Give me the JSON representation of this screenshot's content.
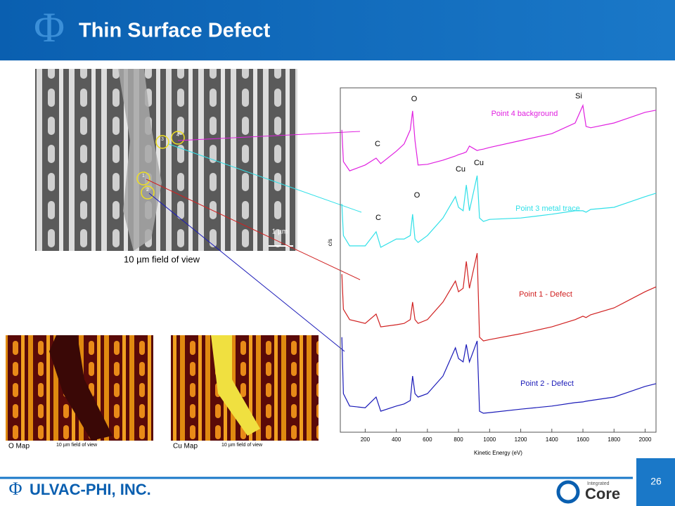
{
  "header": {
    "title": "Thin Surface Defect"
  },
  "sem_image": {
    "caption": "10 µm field of view",
    "scale_bar": "1 µm",
    "points": [
      "4",
      "3",
      "1",
      "2"
    ]
  },
  "maps": [
    {
      "label": "O Map",
      "caption": "10 µm field of view"
    },
    {
      "label": "Cu Map",
      "caption": "10 µm field of view"
    }
  ],
  "footer": {
    "company": "ULVAC-PHI, INC.",
    "page": "26",
    "brand_small": "Integrated",
    "brand": "Core"
  },
  "chart_data": {
    "type": "line",
    "x_label": "Kinetic Energy (eV)",
    "y_label": "c/s",
    "x": [
      50,
      60,
      100,
      200,
      270,
      300,
      400,
      450,
      490,
      505,
      520,
      540,
      600,
      700,
      780,
      800,
      830,
      850,
      870,
      920,
      935,
      960,
      1000,
      1200,
      1400,
      1550,
      1600,
      1620,
      1650,
      1800,
      2000,
      2070
    ],
    "series": [
      {
        "name": "Point 4 background",
        "color": "#e020e0",
        "values": [
          87.8,
          78.6,
          75.9,
          77.6,
          79.6,
          78.0,
          81.6,
          83.7,
          87.8,
          93.3,
          84.7,
          77.6,
          77.8,
          79.0,
          80.2,
          80.6,
          81.0,
          81.4,
          83.1,
          81.8,
          82.0,
          82.2,
          82.7,
          84.7,
          86.7,
          89.8,
          94.9,
          88.8,
          88.4,
          89.8,
          92.9,
          93.5
        ]
      },
      {
        "name": "Point 3 metal trace",
        "color": "#30e0e8",
        "values": [
          66.3,
          57.1,
          54.1,
          54.1,
          58.2,
          53.7,
          56.1,
          56.1,
          57.1,
          63.3,
          56.1,
          55.1,
          57.1,
          62.2,
          68.4,
          65.3,
          64.3,
          71.8,
          64.3,
          74.5,
          62.2,
          61.2,
          61.8,
          62.2,
          63.3,
          64.3,
          64.3,
          63.9,
          64.7,
          65.3,
          68.4,
          69.4
        ]
      },
      {
        "name": "Point 1 - Defect",
        "color": "#d02020",
        "values": [
          45.9,
          35.7,
          32.7,
          31.6,
          34.3,
          30.6,
          31.2,
          31.6,
          32.7,
          37.8,
          32.7,
          31.6,
          32.7,
          37.8,
          43.9,
          40.8,
          41.8,
          49.6,
          41.8,
          52.0,
          27.6,
          26.5,
          26.9,
          28.6,
          30.6,
          32.7,
          33.7,
          33.3,
          34.1,
          36.1,
          40.8,
          42.2
        ]
      },
      {
        "name": "Point 2 - Defect",
        "color": "#1a1ab8",
        "values": [
          27.6,
          11.2,
          7.6,
          7.1,
          10.2,
          6.1,
          7.6,
          8.2,
          9.2,
          16.3,
          11.2,
          10.2,
          11.2,
          16.3,
          24.5,
          21.4,
          20.4,
          25.5,
          20.4,
          26.5,
          6.1,
          5.5,
          5.7,
          6.7,
          7.6,
          8.6,
          8.8,
          9.0,
          9.2,
          10.2,
          13.3,
          14.1
        ]
      }
    ],
    "annotations": [
      "Si",
      "O",
      "C",
      "Cu",
      "Cu",
      "O",
      "C"
    ],
    "xlim": [
      40,
      2070
    ],
    "ylim": [
      0,
      100
    ],
    "xticks": [
      200,
      400,
      600,
      800,
      1000,
      1200,
      1400,
      1600,
      1800,
      2000
    ]
  }
}
